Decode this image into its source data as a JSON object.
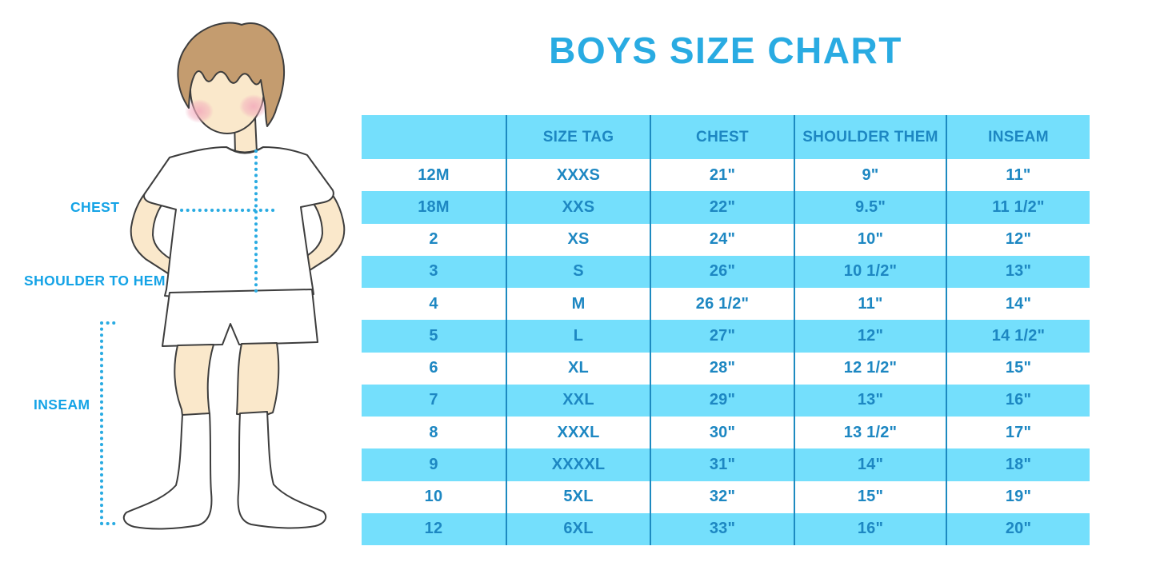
{
  "title": "BOYS SIZE CHART",
  "figure": {
    "labels": {
      "chest": "CHEST",
      "shoulder_to_hem": "SHOULDER TO HEM",
      "inseam": "INSEAM"
    },
    "illustration": "boy-in-white-tee-shorts-and-knee-socks-with-dotted-measurement-lines"
  },
  "colors": {
    "title_blue": "#29ABE2",
    "label_blue": "#14A3E6",
    "table_text": "#1D87C2",
    "row_fill_cyan": "#74DFFC",
    "divider_blue": "#1D8AC0",
    "dotted_line_blue": "#29ABE2",
    "hair_brown": "#C49C6F",
    "skin": "#FAE8CB",
    "blush_pink": "#F2A9BB"
  },
  "chart_data": {
    "type": "table",
    "title": "BOYS SIZE CHART",
    "columns": [
      "",
      "SIZE TAG",
      "CHEST",
      "SHOULDER THEM",
      "INSEAM"
    ],
    "rows": [
      [
        "12M",
        "XXXS",
        "21\"",
        "9\"",
        "11\""
      ],
      [
        "18M",
        "XXS",
        "22\"",
        "9.5\"",
        "11 1/2\""
      ],
      [
        "2",
        "XS",
        "24\"",
        "10\"",
        "12\""
      ],
      [
        "3",
        "S",
        "26\"",
        "10 1/2\"",
        "13\""
      ],
      [
        "4",
        "M",
        "26 1/2\"",
        "11\"",
        "14\""
      ],
      [
        "5",
        "L",
        "27\"",
        "12\"",
        "14 1/2\""
      ],
      [
        "6",
        "XL",
        "28\"",
        "12 1/2\"",
        "15\""
      ],
      [
        "7",
        "XXL",
        "29\"",
        "13\"",
        "16\""
      ],
      [
        "8",
        "XXXL",
        "30\"",
        "13 1/2\"",
        "17\""
      ],
      [
        "9",
        "XXXXL",
        "31\"",
        "14\"",
        "18\""
      ],
      [
        "10",
        "5XL",
        "32\"",
        "15\"",
        "19\""
      ],
      [
        "12",
        "6XL",
        "33\"",
        "16\"",
        "20\""
      ]
    ],
    "layout": {
      "header_fill": "cyan",
      "row_striping": "white/cyan alternating starting white",
      "column_dividers": "solid blue vertical lines"
    }
  }
}
